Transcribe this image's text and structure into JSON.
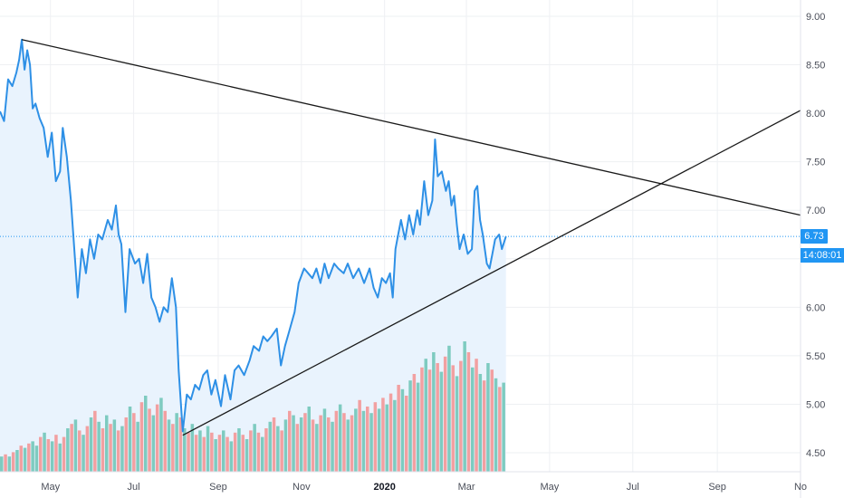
{
  "colors": {
    "price_line": "#2e90e6",
    "area_fill": "#e9f3fd",
    "volume_up": "#7ecbc0",
    "volume_down": "#f2a0a1",
    "trendline": "#1a1a1a",
    "grid": "#eef0f3",
    "last_price_line": "#2196f3",
    "tag_bg": "#2196f3"
  },
  "price_tag": {
    "value": "6.73",
    "countdown": "14:08:01"
  },
  "chart_data": {
    "type": "line",
    "title": "",
    "xlabel": "",
    "ylabel": "",
    "ylim": [
      4.35,
      9.15
    ],
    "yticks": [
      "9.00",
      "8.50",
      "8.00",
      "7.50",
      "7.00",
      "6.50",
      "6.00",
      "5.50",
      "5.00",
      "4.50"
    ],
    "ytick_values": [
      9.0,
      8.5,
      8.0,
      7.5,
      7.0,
      6.5,
      6.0,
      5.5,
      5.0,
      4.5
    ],
    "xlim": [
      "2019-03-25",
      "2020-11-01"
    ],
    "xticks": [
      {
        "label": "May",
        "date": "2019-05-01",
        "bold": false
      },
      {
        "label": "Jul",
        "date": "2019-07-01",
        "bold": false
      },
      {
        "label": "Sep",
        "date": "2019-09-01",
        "bold": false
      },
      {
        "label": "Nov",
        "date": "2019-11-01",
        "bold": false
      },
      {
        "label": "2020",
        "date": "2020-01-01",
        "bold": true
      },
      {
        "label": "Mar",
        "date": "2020-03-01",
        "bold": false
      },
      {
        "label": "May",
        "date": "2020-05-01",
        "bold": false
      },
      {
        "label": "Jul",
        "date": "2020-07-01",
        "bold": false
      },
      {
        "label": "Sep",
        "date": "2020-09-01",
        "bold": false
      },
      {
        "label": "No",
        "date": "2020-11-01",
        "bold": false
      }
    ],
    "grid": true,
    "last_price": 6.73,
    "series": [
      {
        "points": [
          [
            "2019-03-25",
            8.02
          ],
          [
            "2019-03-28",
            7.92
          ],
          [
            "2019-03-31",
            8.35
          ],
          [
            "2019-04-03",
            8.28
          ],
          [
            "2019-04-06",
            8.42
          ],
          [
            "2019-04-08",
            8.55
          ],
          [
            "2019-04-10",
            8.76
          ],
          [
            "2019-04-12",
            8.45
          ],
          [
            "2019-04-14",
            8.65
          ],
          [
            "2019-04-16",
            8.5
          ],
          [
            "2019-04-18",
            8.05
          ],
          [
            "2019-04-20",
            8.1
          ],
          [
            "2019-04-23",
            7.95
          ],
          [
            "2019-04-26",
            7.85
          ],
          [
            "2019-04-29",
            7.55
          ],
          [
            "2019-05-02",
            7.8
          ],
          [
            "2019-05-05",
            7.3
          ],
          [
            "2019-05-08",
            7.4
          ],
          [
            "2019-05-10",
            7.85
          ],
          [
            "2019-05-13",
            7.55
          ],
          [
            "2019-05-16",
            7.1
          ],
          [
            "2019-05-19",
            6.5
          ],
          [
            "2019-05-21",
            6.1
          ],
          [
            "2019-05-24",
            6.6
          ],
          [
            "2019-05-27",
            6.35
          ],
          [
            "2019-05-30",
            6.7
          ],
          [
            "2019-06-02",
            6.5
          ],
          [
            "2019-06-05",
            6.75
          ],
          [
            "2019-06-08",
            6.7
          ],
          [
            "2019-06-12",
            6.9
          ],
          [
            "2019-06-15",
            6.8
          ],
          [
            "2019-06-18",
            7.05
          ],
          [
            "2019-06-20",
            6.75
          ],
          [
            "2019-06-22",
            6.65
          ],
          [
            "2019-06-25",
            5.95
          ],
          [
            "2019-06-28",
            6.6
          ],
          [
            "2019-07-02",
            6.45
          ],
          [
            "2019-07-05",
            6.5
          ],
          [
            "2019-07-08",
            6.25
          ],
          [
            "2019-07-11",
            6.55
          ],
          [
            "2019-07-14",
            6.1
          ],
          [
            "2019-07-17",
            6.0
          ],
          [
            "2019-07-20",
            5.85
          ],
          [
            "2019-07-23",
            6.0
          ],
          [
            "2019-07-26",
            5.95
          ],
          [
            "2019-07-29",
            6.3
          ],
          [
            "2019-08-01",
            6.0
          ],
          [
            "2019-08-03",
            5.35
          ],
          [
            "2019-08-06",
            4.72
          ],
          [
            "2019-08-09",
            5.1
          ],
          [
            "2019-08-12",
            5.05
          ],
          [
            "2019-08-15",
            5.2
          ],
          [
            "2019-08-18",
            5.15
          ],
          [
            "2019-08-21",
            5.3
          ],
          [
            "2019-08-24",
            5.35
          ],
          [
            "2019-08-27",
            5.1
          ],
          [
            "2019-08-30",
            5.25
          ],
          [
            "2019-09-03",
            4.98
          ],
          [
            "2019-09-06",
            5.3
          ],
          [
            "2019-09-10",
            5.05
          ],
          [
            "2019-09-13",
            5.35
          ],
          [
            "2019-09-16",
            5.4
          ],
          [
            "2019-09-20",
            5.3
          ],
          [
            "2019-09-24",
            5.45
          ],
          [
            "2019-09-27",
            5.6
          ],
          [
            "2019-10-01",
            5.55
          ],
          [
            "2019-10-04",
            5.7
          ],
          [
            "2019-10-07",
            5.65
          ],
          [
            "2019-10-10",
            5.7
          ],
          [
            "2019-10-14",
            5.78
          ],
          [
            "2019-10-17",
            5.4
          ],
          [
            "2019-10-20",
            5.6
          ],
          [
            "2019-10-23",
            5.75
          ],
          [
            "2019-10-27",
            5.95
          ],
          [
            "2019-10-30",
            6.25
          ],
          [
            "2019-11-03",
            6.4
          ],
          [
            "2019-11-06",
            6.35
          ],
          [
            "2019-11-09",
            6.3
          ],
          [
            "2019-11-12",
            6.4
          ],
          [
            "2019-11-15",
            6.25
          ],
          [
            "2019-11-18",
            6.45
          ],
          [
            "2019-11-21",
            6.3
          ],
          [
            "2019-11-25",
            6.45
          ],
          [
            "2019-11-28",
            6.4
          ],
          [
            "2019-12-02",
            6.35
          ],
          [
            "2019-12-05",
            6.45
          ],
          [
            "2019-12-09",
            6.3
          ],
          [
            "2019-12-13",
            6.4
          ],
          [
            "2019-12-17",
            6.25
          ],
          [
            "2019-12-21",
            6.4
          ],
          [
            "2019-12-24",
            6.2
          ],
          [
            "2019-12-27",
            6.1
          ],
          [
            "2019-12-30",
            6.3
          ],
          [
            "2020-01-02",
            6.25
          ],
          [
            "2020-01-05",
            6.35
          ],
          [
            "2020-01-07",
            6.1
          ],
          [
            "2020-01-09",
            6.6
          ],
          [
            "2020-01-11",
            6.75
          ],
          [
            "2020-01-13",
            6.9
          ],
          [
            "2020-01-16",
            6.7
          ],
          [
            "2020-01-19",
            6.95
          ],
          [
            "2020-01-22",
            6.75
          ],
          [
            "2020-01-25",
            7.0
          ],
          [
            "2020-01-27",
            6.85
          ],
          [
            "2020-01-30",
            7.3
          ],
          [
            "2020-02-02",
            6.95
          ],
          [
            "2020-02-05",
            7.1
          ],
          [
            "2020-02-07",
            7.73
          ],
          [
            "2020-02-09",
            7.35
          ],
          [
            "2020-02-12",
            7.4
          ],
          [
            "2020-02-15",
            7.2
          ],
          [
            "2020-02-17",
            7.3
          ],
          [
            "2020-02-19",
            7.05
          ],
          [
            "2020-02-21",
            7.15
          ],
          [
            "2020-02-23",
            6.85
          ],
          [
            "2020-02-25",
            6.6
          ],
          [
            "2020-02-28",
            6.75
          ],
          [
            "2020-03-02",
            6.55
          ],
          [
            "2020-03-05",
            6.6
          ],
          [
            "2020-03-07",
            7.2
          ],
          [
            "2020-03-09",
            7.25
          ],
          [
            "2020-03-11",
            6.9
          ],
          [
            "2020-03-13",
            6.75
          ],
          [
            "2020-03-16",
            6.45
          ],
          [
            "2020-03-18",
            6.4
          ],
          [
            "2020-03-20",
            6.55
          ],
          [
            "2020-03-22",
            6.7
          ],
          [
            "2020-03-25",
            6.75
          ],
          [
            "2020-03-27",
            6.6
          ],
          [
            "2020-03-30",
            6.73
          ]
        ]
      }
    ],
    "volume": [
      [
        7,
        1
      ],
      [
        8,
        0
      ],
      [
        7,
        1
      ],
      [
        9,
        0
      ],
      [
        10,
        1
      ],
      [
        12,
        0
      ],
      [
        11,
        1
      ],
      [
        13,
        0
      ],
      [
        14,
        1
      ],
      [
        12,
        1
      ],
      [
        16,
        0
      ],
      [
        18,
        1
      ],
      [
        15,
        0
      ],
      [
        14,
        1
      ],
      [
        17,
        0
      ],
      [
        13,
        1
      ],
      [
        16,
        0
      ],
      [
        20,
        1
      ],
      [
        22,
        0
      ],
      [
        24,
        1
      ],
      [
        19,
        0
      ],
      [
        17,
        1
      ],
      [
        21,
        0
      ],
      [
        25,
        1
      ],
      [
        28,
        0
      ],
      [
        23,
        1
      ],
      [
        20,
        0
      ],
      [
        26,
        1
      ],
      [
        22,
        0
      ],
      [
        24,
        1
      ],
      [
        19,
        0
      ],
      [
        21,
        1
      ],
      [
        25,
        0
      ],
      [
        30,
        1
      ],
      [
        27,
        0
      ],
      [
        23,
        1
      ],
      [
        32,
        0
      ],
      [
        35,
        1
      ],
      [
        29,
        0
      ],
      [
        26,
        1
      ],
      [
        31,
        0
      ],
      [
        34,
        1
      ],
      [
        28,
        0
      ],
      [
        24,
        1
      ],
      [
        22,
        0
      ],
      [
        27,
        1
      ],
      [
        25,
        0
      ],
      [
        20,
        1
      ],
      [
        18,
        0
      ],
      [
        22,
        1
      ],
      [
        17,
        0
      ],
      [
        19,
        1
      ],
      [
        16,
        0
      ],
      [
        21,
        1
      ],
      [
        18,
        0
      ],
      [
        15,
        1
      ],
      [
        17,
        0
      ],
      [
        19,
        1
      ],
      [
        16,
        0
      ],
      [
        14,
        1
      ],
      [
        18,
        0
      ],
      [
        20,
        1
      ],
      [
        17,
        0
      ],
      [
        15,
        1
      ],
      [
        19,
        0
      ],
      [
        22,
        1
      ],
      [
        18,
        0
      ],
      [
        16,
        1
      ],
      [
        20,
        0
      ],
      [
        23,
        1
      ],
      [
        25,
        0
      ],
      [
        21,
        1
      ],
      [
        19,
        0
      ],
      [
        24,
        1
      ],
      [
        28,
        0
      ],
      [
        26,
        1
      ],
      [
        22,
        0
      ],
      [
        25,
        1
      ],
      [
        27,
        0
      ],
      [
        30,
        1
      ],
      [
        24,
        0
      ],
      [
        22,
        1
      ],
      [
        26,
        0
      ],
      [
        29,
        1
      ],
      [
        25,
        0
      ],
      [
        23,
        1
      ],
      [
        28,
        0
      ],
      [
        31,
        1
      ],
      [
        27,
        0
      ],
      [
        24,
        1
      ],
      [
        26,
        0
      ],
      [
        29,
        1
      ],
      [
        33,
        0
      ],
      [
        28,
        1
      ],
      [
        30,
        0
      ],
      [
        27,
        1
      ],
      [
        32,
        0
      ],
      [
        29,
        1
      ],
      [
        34,
        0
      ],
      [
        31,
        1
      ],
      [
        36,
        0
      ],
      [
        33,
        1
      ],
      [
        40,
        0
      ],
      [
        38,
        1
      ],
      [
        35,
        0
      ],
      [
        42,
        1
      ],
      [
        45,
        0
      ],
      [
        41,
        1
      ],
      [
        48,
        0
      ],
      [
        52,
        1
      ],
      [
        47,
        0
      ],
      [
        55,
        1
      ],
      [
        50,
        0
      ],
      [
        46,
        1
      ],
      [
        53,
        0
      ],
      [
        58,
        1
      ],
      [
        49,
        0
      ],
      [
        44,
        1
      ],
      [
        51,
        0
      ],
      [
        60,
        1
      ],
      [
        55,
        0
      ],
      [
        48,
        1
      ],
      [
        52,
        0
      ],
      [
        45,
        1
      ],
      [
        42,
        0
      ],
      [
        50,
        1
      ],
      [
        47,
        0
      ],
      [
        43,
        1
      ],
      [
        39,
        0
      ],
      [
        41,
        1
      ]
    ],
    "trendlines": [
      {
        "x1": "2019-04-10",
        "y1": 8.76,
        "x2": "2020-11-01",
        "y2": 6.95
      },
      {
        "x1": "2019-08-06",
        "y1": 4.68,
        "x2": "2020-11-01",
        "y2": 8.03
      }
    ]
  }
}
